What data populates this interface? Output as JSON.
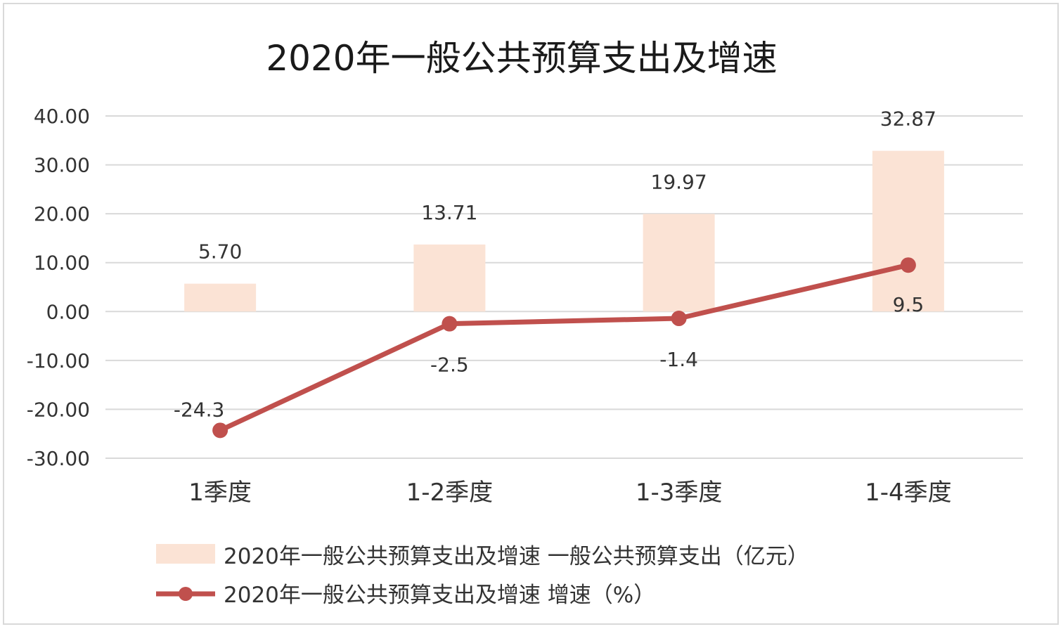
{
  "chart_data": {
    "type": "bar+line",
    "title": "2020年一般公共预算支出及增速",
    "categories": [
      "1季度",
      "1-2季度",
      "1-3季度",
      "1-4季度"
    ],
    "ylim": [
      -30,
      40
    ],
    "yticks": [
      "40.00",
      "30.00",
      "20.00",
      "10.00",
      "0.00",
      "-10.00",
      "-20.00",
      "-30.00"
    ],
    "ytick_values": [
      40,
      30,
      20,
      10,
      0,
      -10,
      -20,
      -30
    ],
    "grid": true,
    "legend_position": "bottom",
    "series": [
      {
        "name": "2020年一般公共预算支出及增速 一般公共预算支出（亿元）",
        "kind": "bar",
        "color": "#fbe3d5",
        "values": [
          5.7,
          13.71,
          19.97,
          32.87
        ],
        "labels": [
          "5.70",
          "13.71",
          "19.97",
          "32.87"
        ]
      },
      {
        "name": "2020年一般公共预算支出及增速 增速（%）",
        "kind": "line",
        "color": "#c0504d",
        "values": [
          -24.3,
          -2.5,
          -1.4,
          9.5
        ],
        "labels": [
          "-24.3",
          "-2.5",
          "-1.4",
          "9.5"
        ]
      }
    ]
  }
}
